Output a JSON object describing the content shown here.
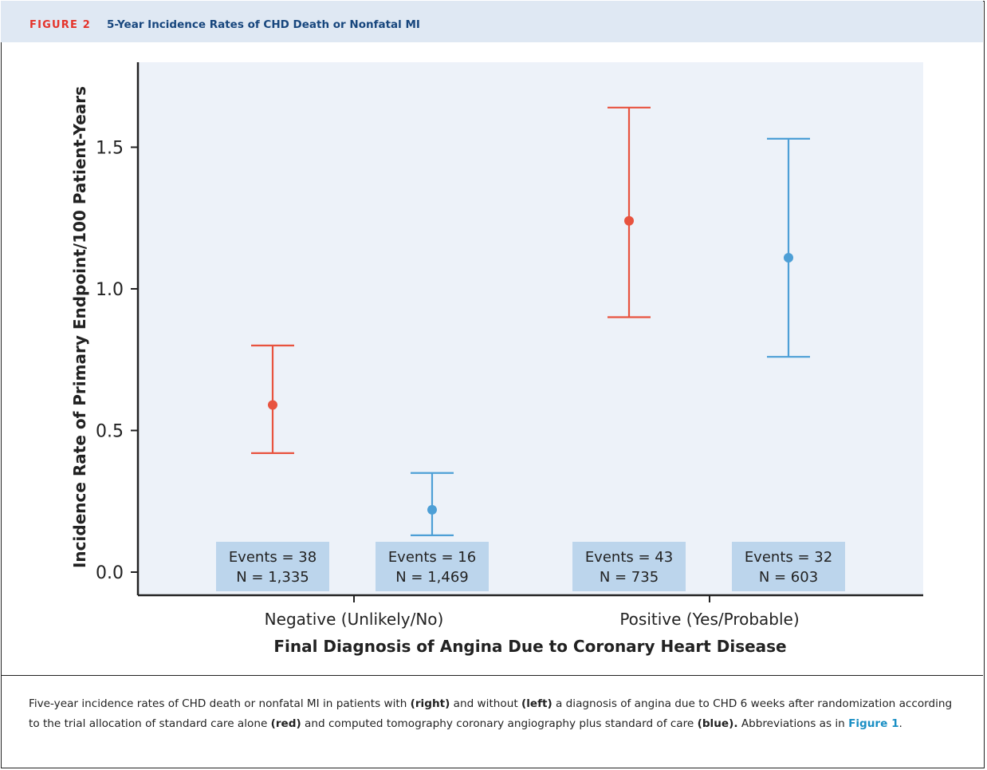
{
  "figure": {
    "label": "FIGURE 2",
    "title": "5-Year Incidence Rates of CHD Death or Nonfatal MI"
  },
  "caption": {
    "part1": "Five-year incidence rates of CHD death or nonfatal MI in patients with ",
    "bold1": "(right)",
    "part2": " and without ",
    "bold2": "(left)",
    "part3": " a diagnosis of angina due to CHD 6 weeks after randomization according to the trial allocation of standard care alone ",
    "bold3": "(red)",
    "part4": " and computed tomography coronary angiography plus standard of care ",
    "bold4": "(blue).",
    "part5": " Abbreviations as in ",
    "ref": "Figure 1",
    "part6": "."
  },
  "colors": {
    "standard_care": "#e8533f",
    "ctca": "#4d9fd6",
    "plot_bg": "#edf2f9",
    "label_box": "#bcd5ec"
  },
  "chart_data": {
    "type": "scatter",
    "title": "",
    "xlabel": "Final Diagnosis of Angina Due to Coronary Heart Disease",
    "ylabel": "Incidence Rate of Primary Endpoint/100 Patient-Years",
    "ylim": [
      0,
      1.75
    ],
    "yticks": [
      "0.0",
      "0.5",
      "1.0",
      "1.5"
    ],
    "grid": false,
    "categories": [
      "Negative (Unlikely/No)",
      "Positive (Yes/Probable)"
    ],
    "series": [
      {
        "color": "red",
        "points": [
          {
            "category": "Negative (Unlikely/No)",
            "y": 0.59,
            "lower": 0.42,
            "upper": 0.8,
            "events_label": "Events = 38",
            "n_label": "N = 1,335"
          },
          {
            "category": "Positive (Yes/Probable)",
            "y": 1.24,
            "lower": 0.9,
            "upper": 1.64,
            "events_label": "Events = 43",
            "n_label": "N = 735"
          }
        ]
      },
      {
        "color": "blue",
        "points": [
          {
            "category": "Negative (Unlikely/No)",
            "y": 0.22,
            "lower": 0.13,
            "upper": 0.35,
            "events_label": "Events = 16",
            "n_label": "N = 1,469"
          },
          {
            "category": "Positive (Yes/Probable)",
            "y": 1.11,
            "lower": 0.76,
            "upper": 1.53,
            "events_label": "Events = 32",
            "n_label": "N = 603"
          }
        ]
      }
    ]
  }
}
